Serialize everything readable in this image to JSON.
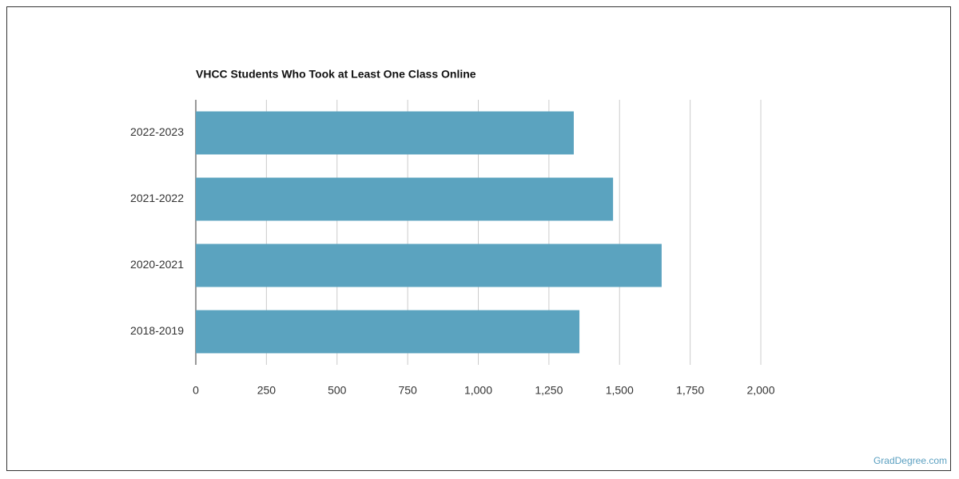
{
  "chart_data": {
    "type": "bar",
    "orientation": "horizontal",
    "title": "VHCC Students Who Took at Least One Class Online",
    "categories": [
      "2022-2023",
      "2021-2022",
      "2020-2021",
      "2018-2019"
    ],
    "values": [
      1338,
      1477,
      1649,
      1358
    ],
    "color": "#5ba3bf",
    "xlim": [
      0,
      2000
    ],
    "xticks": [
      0,
      250,
      500,
      750,
      {
        "value": 1000,
        "label": "1,000"
      },
      {
        "value": 1250,
        "label": "1,250"
      },
      {
        "value": 1500,
        "label": "1,500"
      },
      {
        "value": 1750,
        "label": "1,750"
      },
      {
        "value": 2000,
        "label": "2,000"
      }
    ],
    "grid": true
  },
  "source": "GradDegree.com"
}
